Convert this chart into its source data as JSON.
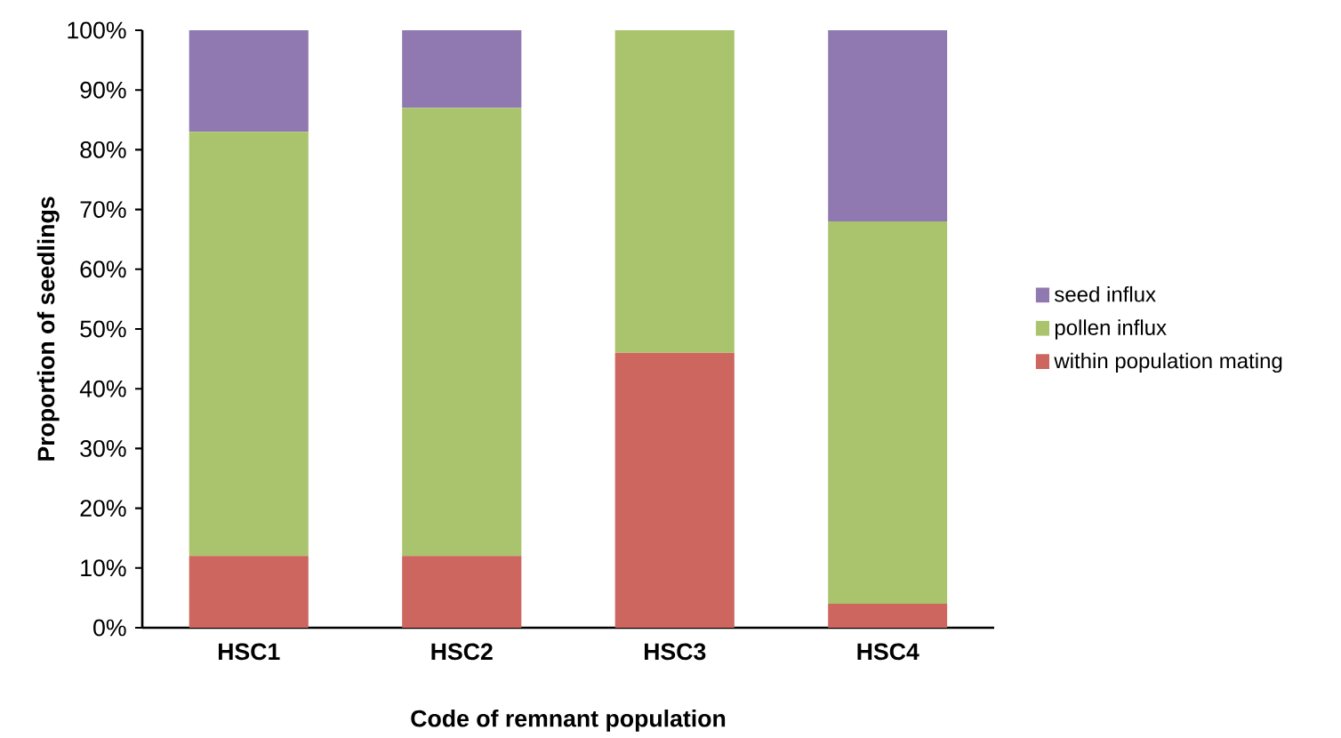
{
  "chart_data": {
    "type": "bar",
    "stacked": true,
    "xlabel": "Code of remnant population",
    "ylabel": "Proportion of seedlings",
    "categories": [
      "HSC1",
      "HSC2",
      "HSC3",
      "HSC4"
    ],
    "series": [
      {
        "name": "within population mating",
        "color": "#cc665e",
        "values": [
          12,
          12,
          46,
          4
        ]
      },
      {
        "name": "pollen influx",
        "color": "#aac46e",
        "values": [
          71,
          75,
          54,
          64
        ]
      },
      {
        "name": "seed influx",
        "color": "#9079b0",
        "values": [
          17,
          13,
          0,
          32
        ]
      }
    ],
    "ylim": [
      0,
      100
    ],
    "yticks": [
      {
        "value": 0,
        "label": "0%"
      },
      {
        "value": 10,
        "label": "10%"
      },
      {
        "value": 20,
        "label": "20%"
      },
      {
        "value": 30,
        "label": "30%"
      },
      {
        "value": 40,
        "label": "40%"
      },
      {
        "value": 50,
        "label": "50%"
      },
      {
        "value": 60,
        "label": "60%"
      },
      {
        "value": 70,
        "label": "70%"
      },
      {
        "value": 80,
        "label": "80%"
      },
      {
        "value": 90,
        "label": "90%"
      },
      {
        "value": 100,
        "label": "100%"
      }
    ],
    "grid": false,
    "legend": "right"
  }
}
